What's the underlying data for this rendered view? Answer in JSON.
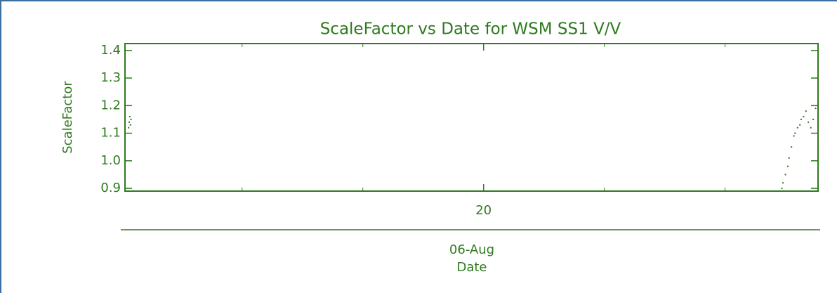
{
  "chart_data": {
    "type": "scatter",
    "title": "ScaleFactor vs Date for WSM SS1 V/V",
    "ylabel": "ScaleFactor",
    "xlabel": "Date",
    "xlabel_date": "06-Aug",
    "color": "#2f7a1f",
    "xlim": [
      17.03,
      22.77
    ],
    "xticks": [
      {
        "value": 20,
        "label": "20"
      }
    ],
    "xminor_ticks": [
      18,
      19,
      21,
      22
    ],
    "ylim": [
      0.89,
      1.425
    ],
    "yticks": [
      0.9,
      {
        "value": 1.0,
        "label": "1.0"
      },
      1.1,
      1.2,
      1.3,
      1.4
    ],
    "x": [
      17.06,
      17.065,
      17.07,
      17.075,
      17.08,
      22.47,
      22.48,
      22.5,
      22.52,
      22.53,
      22.55,
      22.57,
      22.58,
      22.6,
      22.62,
      22.63,
      22.65,
      22.67,
      22.69,
      22.71,
      22.73,
      22.75
    ],
    "values": [
      1.12,
      1.14,
      1.16,
      1.13,
      1.15,
      0.9,
      0.92,
      0.95,
      0.98,
      1.01,
      1.05,
      1.09,
      1.1,
      1.12,
      1.13,
      1.15,
      1.16,
      1.18,
      1.14,
      1.12,
      1.15,
      1.19
    ]
  }
}
